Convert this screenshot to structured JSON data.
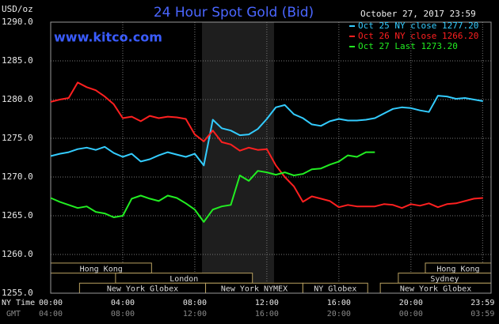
{
  "chart_data": {
    "type": "line",
    "title": "24 Hour Spot Gold (Bid)",
    "subtitle": "October 27, 2017 23:59",
    "annotation": "www.kitco.com",
    "ylabel": "USD/oz",
    "xlabel": "NY Time",
    "x2label": "GMT",
    "x": [
      0,
      0.5,
      1,
      1.5,
      2,
      2.5,
      3,
      3.5,
      4,
      4.5,
      5,
      5.5,
      6,
      6.5,
      7,
      7.5,
      8,
      8.5,
      9,
      9.5,
      10,
      10.5,
      11,
      11.5,
      12,
      12.5,
      13,
      13.5,
      14,
      14.5,
      15,
      15.5,
      16,
      16.5,
      17,
      17.5,
      18,
      18.5,
      19,
      19.5,
      20,
      20.5,
      21,
      21.5,
      22,
      22.5,
      23,
      23.5,
      24
    ],
    "series": [
      {
        "name": "Oct 25 NY close 1277.20",
        "color": "#33ccff",
        "values": [
          1272.7,
          1273.0,
          1273.2,
          1273.6,
          1273.8,
          1273.5,
          1273.9,
          1273.1,
          1272.6,
          1273.0,
          1272.0,
          1272.3,
          1272.8,
          1273.2,
          1272.9,
          1272.6,
          1273.0,
          1271.5,
          1277.4,
          1276.3,
          1276.0,
          1275.4,
          1275.5,
          1276.2,
          1277.5,
          1279.0,
          1279.3,
          1278.1,
          1277.6,
          1276.8,
          1276.6,
          1277.2,
          1277.5,
          1277.3,
          1277.3,
          1277.4,
          1277.6,
          1278.2,
          1278.8,
          1279.0,
          1278.9,
          1278.6,
          1278.4,
          1280.5,
          1280.4,
          1280.1,
          1280.2,
          1280.0,
          1279.8
        ]
      },
      {
        "name": "Oct 26 NY close 1266.20",
        "color": "#ff2020",
        "values": [
          1279.7,
          1280.0,
          1280.2,
          1282.2,
          1281.6,
          1281.2,
          1280.4,
          1279.4,
          1277.6,
          1277.8,
          1277.2,
          1277.9,
          1277.6,
          1277.8,
          1277.7,
          1277.5,
          1275.5,
          1274.6,
          1276.0,
          1274.5,
          1274.2,
          1273.4,
          1273.8,
          1273.5,
          1273.6,
          1271.5,
          1270.0,
          1268.8,
          1266.8,
          1267.5,
          1267.2,
          1266.9,
          1266.1,
          1266.4,
          1266.2,
          1266.2,
          1266.2,
          1266.5,
          1266.4,
          1266.0,
          1266.5,
          1266.3,
          1266.6,
          1266.1,
          1266.5,
          1266.6,
          1266.9,
          1267.2,
          1267.3
        ]
      },
      {
        "name": "Oct 27 Last 1273.20",
        "color": "#22ee22",
        "values": [
          1267.3,
          1266.8,
          1266.4,
          1266.0,
          1266.2,
          1265.5,
          1265.3,
          1264.8,
          1265.0,
          1267.2,
          1267.6,
          1267.2,
          1266.9,
          1267.6,
          1267.3,
          1266.6,
          1265.8,
          1264.2,
          1265.8,
          1266.2,
          1266.4,
          1270.2,
          1269.5,
          1270.8,
          1270.6,
          1270.3,
          1270.6,
          1270.2,
          1270.4,
          1271.0,
          1271.1,
          1271.6,
          1272.0,
          1272.8,
          1272.6,
          1273.2,
          1273.2,
          null,
          null,
          null,
          null,
          null,
          null,
          null,
          null,
          null,
          null,
          null,
          null
        ]
      }
    ],
    "xlim": [
      0,
      24.45
    ],
    "ylim": [
      1255,
      1290
    ],
    "xticks": [
      {
        "value": 0,
        "label": "00:00"
      },
      {
        "value": 4,
        "label": "04:00"
      },
      {
        "value": 8,
        "label": "08:00"
      },
      {
        "value": 12,
        "label": "12:00"
      },
      {
        "value": 16,
        "label": "16:00"
      },
      {
        "value": 20,
        "label": "20:00"
      },
      {
        "value": 23.98,
        "label": "23:59"
      }
    ],
    "gmt_ticks": [
      "04:00",
      "08:00",
      "12:00",
      "16:00",
      "20:00",
      "00:00",
      "03:59"
    ],
    "yticks": [
      {
        "value": 1255,
        "label": "1255.0"
      },
      {
        "value": 1260,
        "label": "1260.0"
      },
      {
        "value": 1265,
        "label": "1265.0"
      },
      {
        "value": 1270,
        "label": "1270.0"
      },
      {
        "value": 1275,
        "label": "1275.0"
      },
      {
        "value": 1280,
        "label": "1280.0"
      },
      {
        "value": 1285,
        "label": "1285.0"
      },
      {
        "value": 1290,
        "label": "1290.0"
      }
    ],
    "grid": true,
    "legend": "top-right",
    "shaded_range": [
      8.4,
      12.4
    ],
    "sessions": [
      {
        "name": "Hong Kong",
        "start": 0,
        "end": 5.6,
        "row": 1
      },
      {
        "name": "London",
        "start": 3.6,
        "end": 11.2,
        "row": 2
      },
      {
        "name": "New York Globex",
        "start": 1.6,
        "end": 8.6,
        "row": 3
      },
      {
        "name": "New York NYMEX",
        "start": 8.6,
        "end": 14,
        "row": 3
      },
      {
        "name": "NY Globex",
        "start": 14,
        "end": 17.6,
        "row": 3
      },
      {
        "name": "Hong Kong",
        "start": 20.8,
        "end": 24.45,
        "row": 1
      },
      {
        "name": "Sydney",
        "start": 19.3,
        "end": 24.45,
        "row": 2
      },
      {
        "name": "New York Globex",
        "start": 18.3,
        "end": 24.45,
        "row": 3
      }
    ]
  }
}
